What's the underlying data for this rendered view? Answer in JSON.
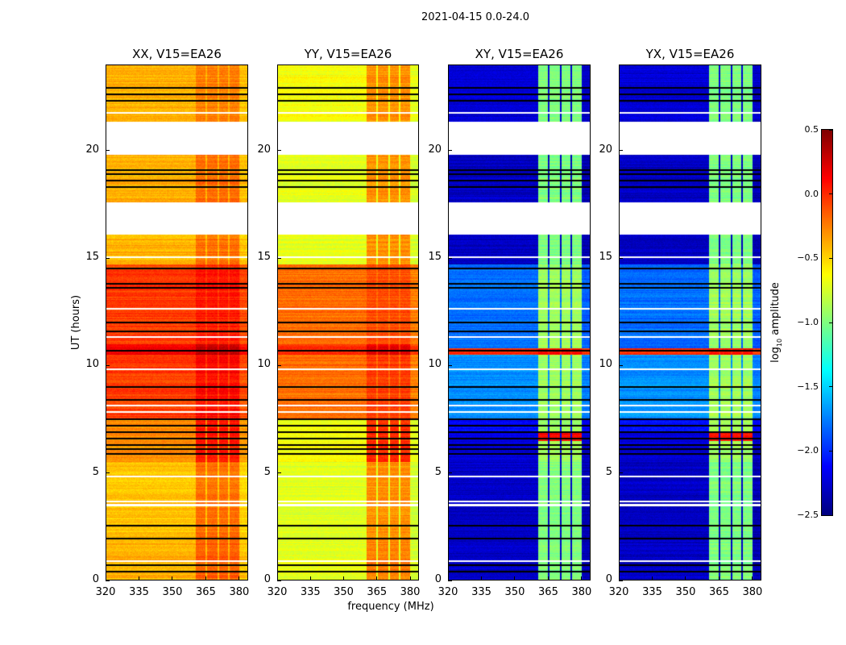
{
  "chart_data": {
    "type": "heatmap",
    "title": "2021-04-15 0.0-24.0",
    "xlabel": "frequency (MHz)",
    "ylabel": "UT (hours)",
    "xlim": [
      320,
      384
    ],
    "ylim": [
      0,
      24
    ],
    "xticks": [
      "320",
      "335",
      "350",
      "365",
      "380"
    ],
    "xtick_values": [
      320,
      335,
      350,
      365,
      380
    ],
    "yticks": [
      "0",
      "5",
      "10",
      "15",
      "20"
    ],
    "ytick_values": [
      0,
      5,
      10,
      15,
      20
    ],
    "colorbar": {
      "label": "log10 amplitude",
      "label_main": "log",
      "label_sub": "10",
      "label_tail": " amplitude",
      "colormap": "jet",
      "vmin": -2.5,
      "vmax": 0.5,
      "ticks": [
        "0.5",
        "0.0",
        "−0.5",
        "−1.0",
        "−1.5",
        "−2.0",
        "−2.5"
      ],
      "tick_values": [
        0.5,
        0.0,
        -0.5,
        -1.0,
        -1.5,
        -2.0,
        -2.5
      ]
    },
    "rfi_bands_mhz": [
      [
        360.5,
        364.8
      ],
      [
        365.6,
        370.2
      ],
      [
        371.0,
        374.8
      ],
      [
        375.6,
        380.0
      ]
    ],
    "flagged_white_hours": [
      [
        16.1,
        17.6
      ],
      [
        19.8,
        21.35
      ],
      [
        0.85,
        0.95
      ],
      [
        3.45,
        3.55
      ],
      [
        3.65,
        3.72
      ],
      [
        4.8,
        4.87
      ],
      [
        7.8,
        7.88
      ],
      [
        8.1,
        8.16
      ],
      [
        9.8,
        9.86
      ],
      [
        11.3,
        11.36
      ],
      [
        12.6,
        12.66
      ],
      [
        15.0,
        15.06
      ],
      [
        21.7,
        21.78
      ]
    ],
    "flagged_black_hours": [
      0.4,
      0.7,
      1.95,
      2.55,
      5.9,
      6.1,
      6.3,
      6.6,
      6.9,
      7.2,
      7.5,
      8.4,
      9.0,
      10.7,
      11.6,
      12.0,
      13.6,
      13.8,
      14.5,
      18.3,
      18.6,
      18.9,
      19.1,
      22.3,
      22.6,
      22.9
    ],
    "panels": [
      {
        "title": "XX, V15=EA26",
        "segments": [
          [
            0,
            2,
            -0.4,
            -0.15
          ],
          [
            2,
            5.5,
            -0.45,
            -0.2
          ],
          [
            5.5,
            7.5,
            -0.3,
            0.05
          ],
          [
            7.5,
            10.5,
            -0.05,
            0.1
          ],
          [
            10.5,
            11,
            0.15,
            0.3
          ],
          [
            11,
            14.7,
            -0.05,
            0.05
          ],
          [
            14.7,
            16.1,
            -0.4,
            -0.2
          ],
          [
            17.6,
            19.8,
            -0.4,
            -0.2
          ],
          [
            21.35,
            24,
            -0.4,
            -0.25
          ]
        ]
      },
      {
        "title": "YY, V15=EA26",
        "segments": [
          [
            0,
            2,
            -0.7,
            -0.25
          ],
          [
            2,
            5.5,
            -0.72,
            -0.3
          ],
          [
            5.5,
            7.5,
            -0.65,
            0.0
          ],
          [
            7.5,
            10.5,
            -0.2,
            -0.05
          ],
          [
            10.5,
            11,
            0.0,
            0.2
          ],
          [
            11,
            14.7,
            -0.2,
            -0.1
          ],
          [
            14.7,
            16.1,
            -0.7,
            -0.3
          ],
          [
            17.6,
            19.8,
            -0.7,
            -0.3
          ],
          [
            21.35,
            24,
            -0.65,
            -0.3
          ]
        ]
      },
      {
        "title": "XY, V15=EA26",
        "segments": [
          [
            0,
            5.5,
            -2.3,
            -1.0
          ],
          [
            5.5,
            6.5,
            -2.25,
            -0.9
          ],
          [
            6.5,
            6.9,
            -2.2,
            0.1
          ],
          [
            6.9,
            7.5,
            -2.1,
            -0.9
          ],
          [
            7.5,
            10.5,
            -1.7,
            -0.9
          ],
          [
            10.5,
            10.8,
            0.0,
            0.1
          ],
          [
            10.8,
            14.7,
            -1.8,
            -0.9
          ],
          [
            14.7,
            16.1,
            -2.3,
            -1.0
          ],
          [
            17.6,
            19.8,
            -2.3,
            -1.0
          ],
          [
            21.35,
            24,
            -2.25,
            -1.0
          ]
        ]
      },
      {
        "title": "YX, V15=EA26",
        "segments": [
          [
            0,
            5.5,
            -2.3,
            -1.0
          ],
          [
            5.5,
            6.5,
            -2.25,
            -0.9
          ],
          [
            6.5,
            6.9,
            -2.2,
            0.1
          ],
          [
            6.9,
            7.5,
            -2.1,
            -0.9
          ],
          [
            7.5,
            10.5,
            -1.7,
            -0.9
          ],
          [
            10.5,
            10.8,
            0.0,
            0.1
          ],
          [
            10.8,
            14.7,
            -1.8,
            -0.9
          ],
          [
            14.7,
            16.1,
            -2.3,
            -1.0
          ],
          [
            17.6,
            19.8,
            -2.3,
            -1.0
          ],
          [
            21.35,
            24,
            -2.25,
            -1.0
          ]
        ]
      }
    ]
  }
}
